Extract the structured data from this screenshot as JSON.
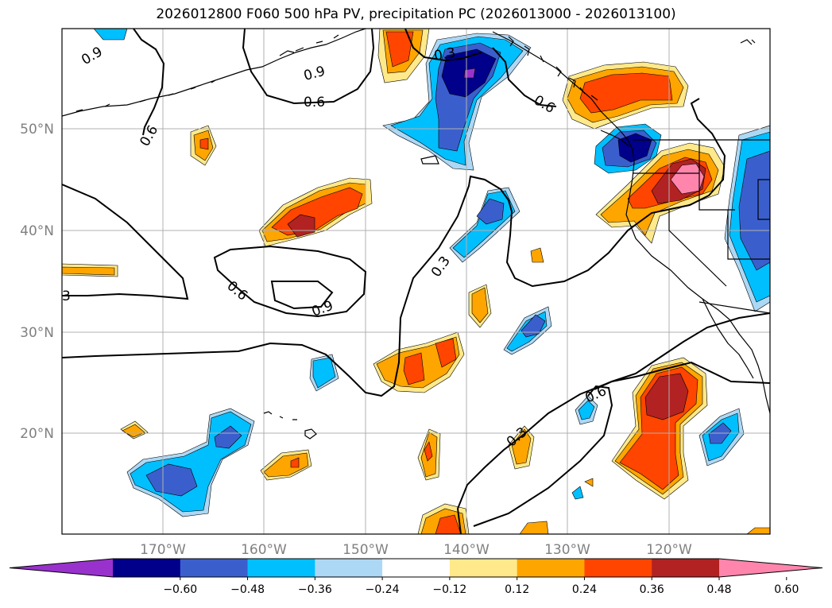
{
  "title": "2026012800 F060 500 hPa PV, precipitation PC (2026013000 - 2026013100)",
  "map": {
    "lon_labels": [
      "170°W",
      "160°W",
      "150°W",
      "140°W",
      "130°W",
      "120°W"
    ],
    "lat_labels": [
      "50°N",
      "40°N",
      "30°N",
      "20°N"
    ],
    "contour_labels": [
      "0.9",
      "0.6",
      "0.9",
      "0.6",
      "0.3",
      "0.6",
      "0.3",
      "0.6",
      "0.9",
      "0.3",
      "0.6",
      "0.3",
      "3"
    ]
  },
  "colorbar": {
    "ticks": [
      "−0.60",
      "−0.48",
      "−0.36",
      "−0.24",
      "−0.12",
      "0.12",
      "0.24",
      "0.36",
      "0.48",
      "0.60"
    ],
    "colors": [
      "#9932cc",
      "#00008b",
      "#3a5fcd",
      "#00bfff",
      "#add8f5",
      "#ffffff",
      "#ffe98a",
      "#ffa500",
      "#ff4500",
      "#b22222",
      "#ff85ad"
    ]
  },
  "colors": {
    "gridline": "#b0b0b0",
    "coast": "#000000",
    "contour": "#000000"
  }
}
